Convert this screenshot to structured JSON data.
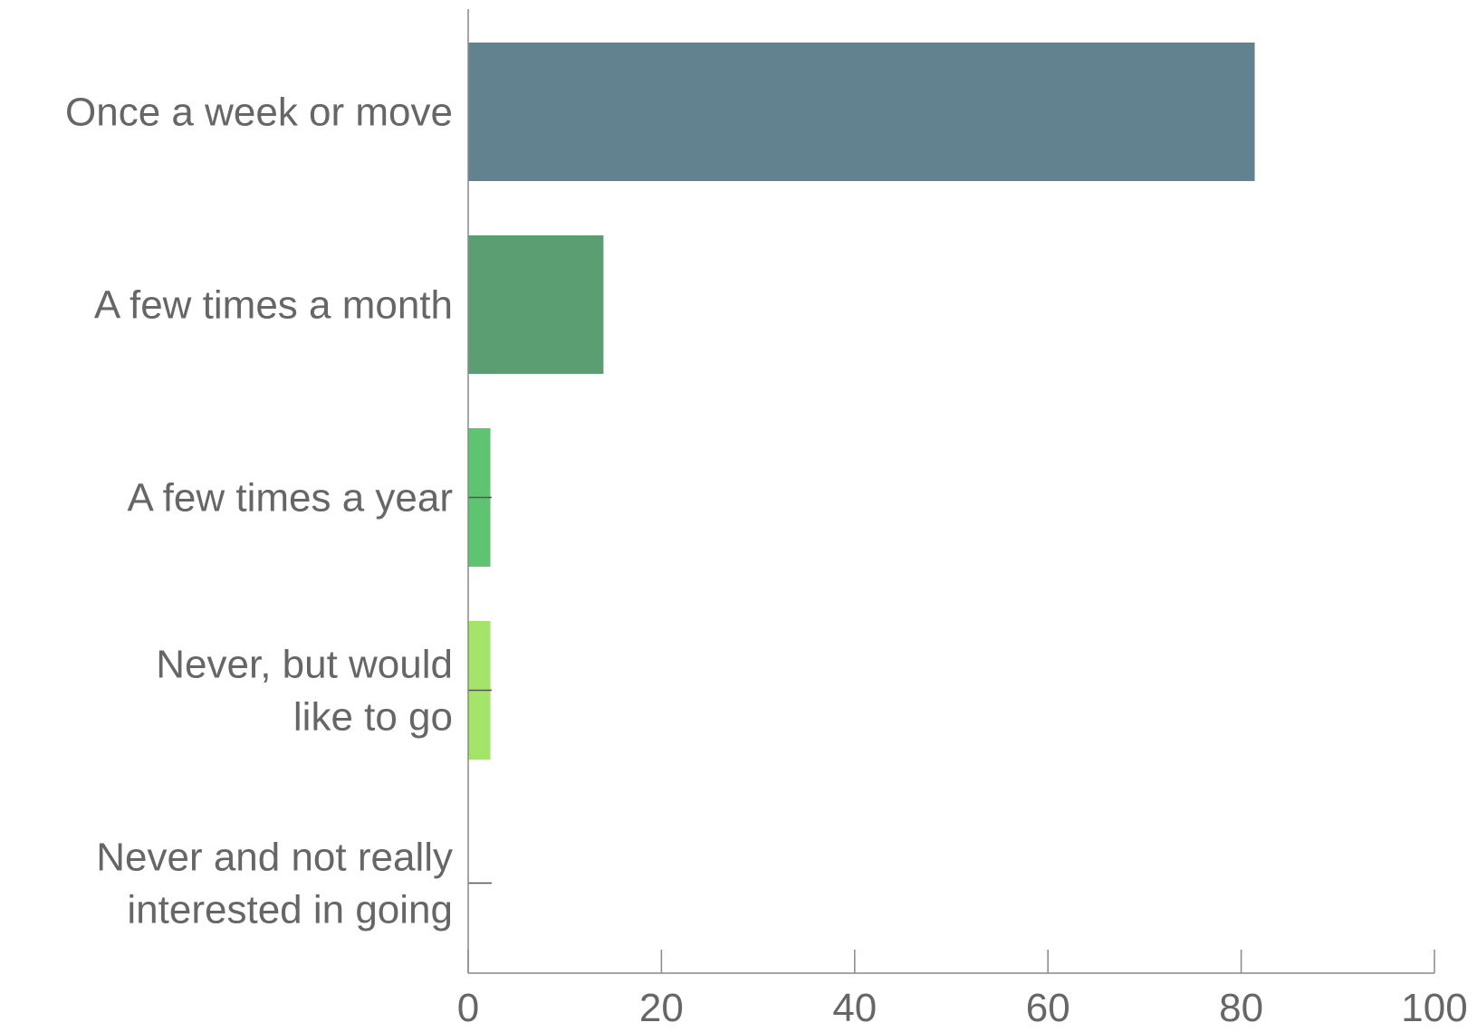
{
  "chart_data": {
    "type": "bar",
    "orientation": "horizontal",
    "categories": [
      [
        "Once a week or move"
      ],
      [
        "A few times a month"
      ],
      [
        "A few times a year"
      ],
      [
        "Never, but would",
        "like to go"
      ],
      [
        "Never and not really",
        "interested in going"
      ]
    ],
    "values": [
      81.4,
      14.0,
      2.3,
      2.3,
      0
    ],
    "colors": [
      "#62828f",
      "#5a9e72",
      "#5ec472",
      "#a5e46b",
      "#a5e46b"
    ],
    "xlim": [
      0,
      100
    ],
    "xticks": [
      0,
      20,
      40,
      60,
      80,
      100
    ],
    "xtick_labels": [
      "0",
      "20",
      "40",
      "60",
      "80",
      "100"
    ],
    "title": "",
    "xlabel": "",
    "ylabel": "",
    "grid": false,
    "legend": "none"
  }
}
